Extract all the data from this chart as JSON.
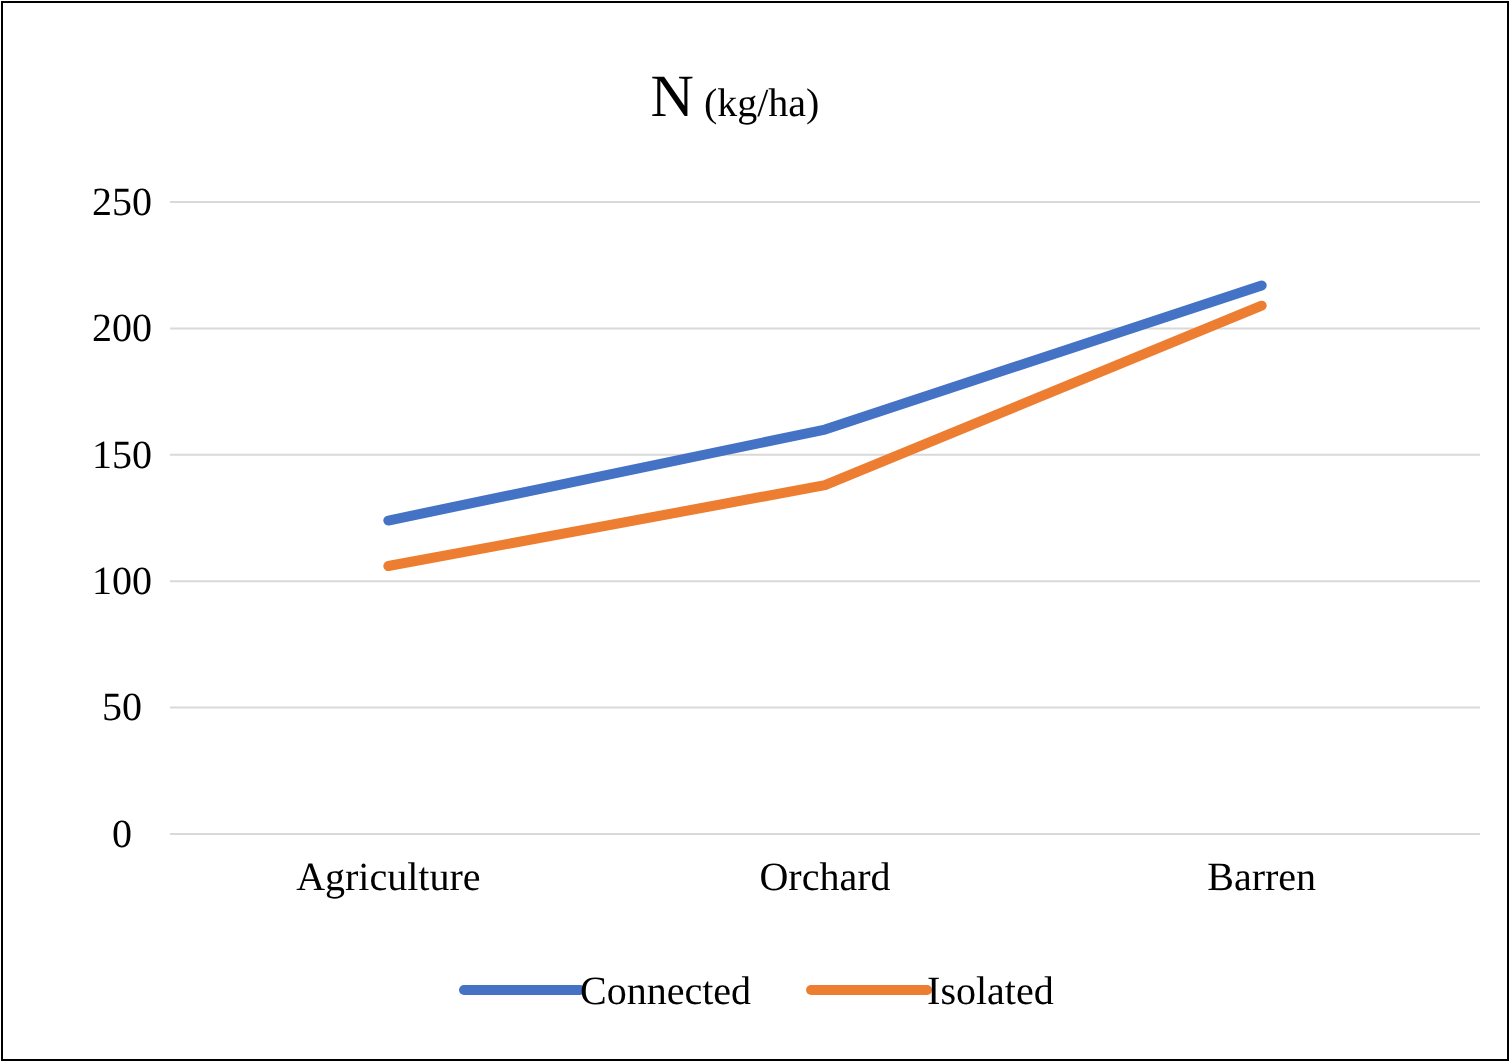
{
  "chart_data": {
    "type": "line",
    "title": "N (kg/ha)",
    "categories": [
      "Agriculture",
      "Orchard",
      "Barren"
    ],
    "series": [
      {
        "name": "Connected",
        "color": "#4472c4",
        "values": [
          124,
          160,
          217
        ]
      },
      {
        "name": "Isolated",
        "color": "#ed7d31",
        "values": [
          106,
          138,
          209
        ]
      }
    ],
    "ylim": [
      0,
      250
    ],
    "yticks": [
      0,
      50,
      100,
      150,
      200,
      250
    ],
    "grid": "y",
    "legend": "bottom",
    "marker": "none",
    "line_style": "solid"
  }
}
